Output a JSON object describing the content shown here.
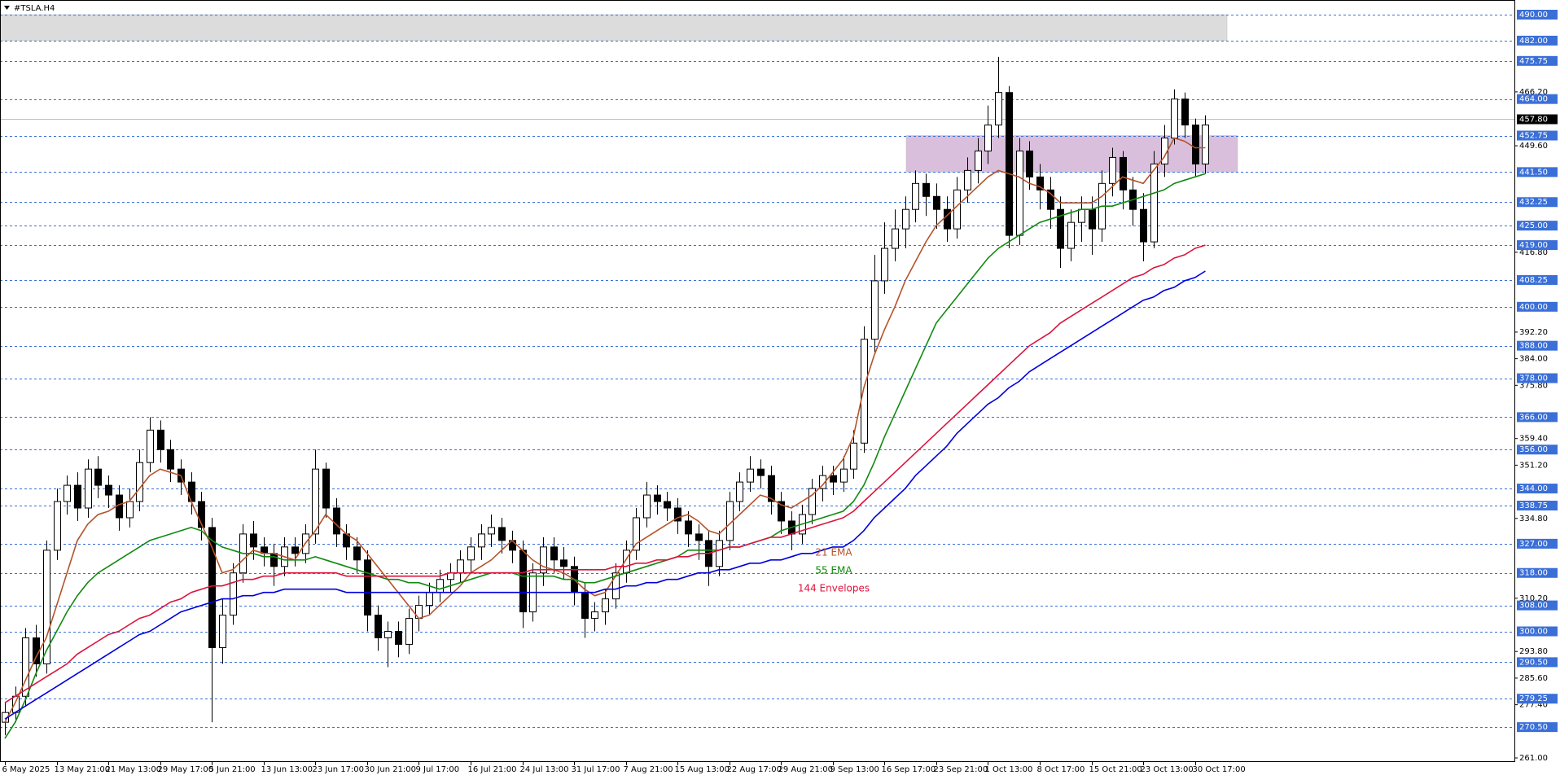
{
  "chart_data": {
    "type": "candlestick",
    "title": "#TSLA.H4",
    "categories": [
      "6 May 2025",
      null,
      null,
      null,
      null,
      "13 May 21:00",
      null,
      null,
      null,
      null,
      "21 May 13:00",
      null,
      null,
      null,
      null,
      "29 May 17:00",
      null,
      null,
      null,
      null,
      "5 Jun 21:00",
      null,
      null,
      null,
      null,
      "13 Jun 13:00",
      null,
      null,
      null,
      null,
      "23 Jun 17:00",
      null,
      null,
      null,
      null,
      "30 Jun 21:00",
      null,
      null,
      null,
      null,
      "9 Jul 17:00",
      null,
      null,
      null,
      null,
      "16 Jul 21:00",
      null,
      null,
      null,
      null,
      "24 Jul 13:00",
      null,
      null,
      null,
      null,
      "31 Jul 17:00",
      null,
      null,
      null,
      null,
      "7 Aug 21:00",
      null,
      null,
      null,
      null,
      "15 Aug 13:00",
      null,
      null,
      null,
      null,
      "22 Aug 17:00",
      null,
      null,
      null,
      null,
      "29 Aug 21:00",
      null,
      null,
      null,
      null,
      "9 Sep 13:00",
      null,
      null,
      null,
      null,
      "16 Sep 17:00",
      null,
      null,
      null,
      null,
      "23 Sep 21:00",
      null,
      null,
      null,
      null,
      "1 Oct 13:00",
      null,
      null,
      null,
      null,
      "8 Oct 17:00",
      null,
      null,
      null,
      null,
      "15 Oct 21:00",
      null,
      null,
      null,
      null,
      "23 Oct 13:00",
      null,
      null,
      null,
      null,
      "30 Oct 17:00",
      null
    ],
    "open": [
      272,
      275,
      280,
      298,
      290,
      325,
      340,
      345,
      338,
      350,
      345,
      342,
      335,
      340,
      352,
      362,
      356,
      350,
      346,
      340,
      332,
      295,
      305,
      318,
      330,
      326,
      324,
      320,
      326,
      324,
      330,
      350,
      338,
      330,
      326,
      322,
      305,
      298,
      300,
      296,
      304,
      308,
      312,
      316,
      318,
      322,
      326,
      330,
      332,
      328,
      325,
      306,
      318,
      326,
      322,
      320,
      312,
      304,
      306,
      310,
      318,
      325,
      335,
      342,
      340,
      338,
      334,
      330,
      328,
      320,
      328,
      340,
      346,
      350,
      348,
      340,
      334,
      330,
      336,
      344,
      348,
      346,
      350,
      358,
      390,
      408,
      418,
      424,
      430,
      438,
      434,
      430,
      424,
      436,
      442,
      448,
      456,
      466,
      422,
      448,
      440,
      436,
      430,
      418,
      426,
      430,
      424,
      438,
      446,
      436,
      430,
      420,
      444,
      452,
      464,
      456,
      444
    ],
    "high": [
      278,
      283,
      301,
      302,
      328,
      344,
      348,
      349,
      353,
      354,
      348,
      345,
      344,
      356,
      366,
      365,
      359,
      353,
      349,
      343,
      335,
      310,
      321,
      333,
      334,
      329,
      327,
      329,
      329,
      333,
      356,
      352,
      341,
      333,
      329,
      325,
      308,
      303,
      303,
      307,
      311,
      315,
      319,
      321,
      325,
      329,
      333,
      336,
      335,
      331,
      328,
      321,
      329,
      329,
      326,
      323,
      315,
      309,
      313,
      321,
      328,
      338,
      346,
      345,
      343,
      341,
      337,
      333,
      331,
      331,
      343,
      349,
      354,
      353,
      351,
      343,
      337,
      339,
      347,
      351,
      351,
      354,
      362,
      394,
      416,
      426,
      430,
      434,
      442,
      441,
      438,
      434,
      440,
      446,
      452,
      462,
      477,
      468,
      452,
      451,
      444,
      440,
      434,
      430,
      434,
      434,
      442,
      449,
      448,
      440,
      435,
      448,
      456,
      467,
      466,
      458,
      459
    ],
    "low": [
      268,
      272,
      277,
      286,
      287,
      322,
      336,
      334,
      335,
      341,
      338,
      331,
      332,
      337,
      349,
      352,
      346,
      342,
      336,
      328,
      272,
      290,
      302,
      315,
      322,
      320,
      314,
      317,
      320,
      321,
      327,
      335,
      326,
      322,
      318,
      300,
      294,
      289,
      292,
      293,
      300,
      305,
      309,
      312,
      315,
      318,
      322,
      326,
      324,
      321,
      301,
      303,
      314,
      318,
      316,
      308,
      298,
      300,
      302,
      307,
      315,
      322,
      332,
      336,
      334,
      330,
      326,
      322,
      314,
      317,
      325,
      337,
      343,
      344,
      336,
      330,
      325,
      327,
      333,
      340,
      342,
      343,
      347,
      355,
      386,
      404,
      414,
      418,
      426,
      428,
      424,
      420,
      421,
      432,
      438,
      444,
      452,
      418,
      419,
      436,
      430,
      424,
      412,
      414,
      420,
      416,
      420,
      434,
      430,
      425,
      414,
      418,
      440,
      450,
      452,
      440,
      441
    ],
    "close": [
      275,
      280,
      298,
      290,
      325,
      340,
      345,
      338,
      350,
      345,
      342,
      335,
      340,
      352,
      362,
      356,
      350,
      346,
      340,
      332,
      295,
      305,
      318,
      330,
      326,
      324,
      320,
      326,
      324,
      330,
      350,
      338,
      330,
      326,
      322,
      305,
      298,
      300,
      296,
      304,
      308,
      312,
      316,
      318,
      322,
      326,
      330,
      332,
      328,
      325,
      306,
      318,
      326,
      322,
      320,
      312,
      304,
      306,
      310,
      318,
      325,
      335,
      342,
      340,
      338,
      334,
      330,
      328,
      320,
      328,
      340,
      346,
      350,
      348,
      340,
      334,
      330,
      336,
      344,
      348,
      346,
      350,
      358,
      390,
      408,
      418,
      424,
      430,
      438,
      434,
      430,
      424,
      436,
      442,
      448,
      456,
      466,
      422,
      448,
      440,
      436,
      430,
      418,
      426,
      430,
      424,
      438,
      446,
      436,
      430,
      420,
      444,
      452,
      464,
      456,
      444,
      456
    ],
    "series": [
      {
        "name": "21 EMA",
        "color": "#b5532a",
        "values": [
          272,
          278,
          285,
          292,
          298,
          308,
          318,
          328,
          333,
          336,
          337,
          339,
          340,
          344,
          348,
          350,
          349,
          348,
          340,
          333,
          326,
          318,
          319,
          322,
          325,
          324,
          324,
          323,
          322,
          327,
          331,
          336,
          333,
          330,
          328,
          324,
          320,
          316,
          312,
          308,
          304,
          305,
          308,
          311,
          314,
          318,
          320,
          322,
          325,
          328,
          325,
          322,
          320,
          319,
          318,
          316,
          313,
          311,
          312,
          317,
          322,
          327,
          329,
          331,
          333,
          335,
          336,
          334,
          331,
          330,
          333,
          336,
          339,
          342,
          341,
          339,
          338,
          340,
          342,
          345,
          349,
          353,
          360,
          375,
          385,
          393,
          400,
          408,
          414,
          420,
          425,
          428,
          431,
          434,
          437,
          440,
          442,
          441,
          440,
          438,
          437,
          435,
          432,
          432,
          432,
          432,
          434,
          437,
          440,
          439,
          438,
          442,
          446,
          452,
          451,
          449,
          449
        ]
      },
      {
        "name": "55 EMA",
        "color": "#118a11",
        "values": [
          267,
          272,
          279,
          287,
          294,
          300,
          306,
          311,
          315,
          318,
          320,
          322,
          324,
          326,
          328,
          329,
          330,
          331,
          332,
          331,
          328,
          326,
          325,
          324,
          324,
          323,
          323,
          322,
          322,
          322,
          323,
          322,
          321,
          320,
          319,
          318,
          317,
          316,
          316,
          315,
          315,
          314,
          313,
          314,
          315,
          316,
          317,
          318,
          318,
          318,
          317,
          317,
          317,
          317,
          316,
          316,
          315,
          315,
          316,
          317,
          318,
          319,
          320,
          321,
          322,
          323,
          325,
          325,
          325,
          325,
          326,
          326,
          327,
          328,
          329,
          331,
          332,
          333,
          334,
          335,
          336,
          337,
          340,
          345,
          352,
          360,
          367,
          374,
          381,
          388,
          395,
          399,
          403,
          407,
          411,
          415,
          418,
          420,
          422,
          424,
          426,
          427,
          428,
          429,
          430,
          430,
          431,
          431,
          432,
          433,
          434,
          435,
          436,
          438,
          439,
          440,
          441
        ]
      },
      {
        "name": "144 Envelopes",
        "color": "#dc143c",
        "values": [
          278,
          280,
          282,
          284,
          286,
          288,
          290,
          293,
          295,
          297,
          299,
          300,
          302,
          304,
          305,
          307,
          309,
          310,
          312,
          313,
          314,
          314,
          315,
          316,
          316,
          317,
          317,
          318,
          318,
          318,
          318,
          318,
          318,
          317,
          317,
          317,
          317,
          317,
          317,
          317,
          317,
          317,
          317,
          318,
          318,
          318,
          318,
          318,
          318,
          318,
          318,
          319,
          319,
          319,
          319,
          319,
          319,
          319,
          319,
          320,
          320,
          321,
          321,
          322,
          322,
          323,
          323,
          324,
          324,
          325,
          326,
          326,
          327,
          328,
          329,
          329,
          330,
          331,
          332,
          333,
          334,
          335,
          337,
          340,
          343,
          346,
          349,
          352,
          355,
          358,
          361,
          364,
          367,
          370,
          373,
          376,
          379,
          382,
          385,
          388,
          390,
          392,
          395,
          397,
          399,
          401,
          403,
          405,
          407,
          409,
          410,
          412,
          413,
          415,
          416,
          418,
          419
        ]
      },
      {
        "color": "#0000e0",
        "values": [
          273,
          275,
          277,
          279,
          281,
          283,
          285,
          287,
          289,
          291,
          293,
          295,
          297,
          299,
          300,
          302,
          304,
          306,
          307,
          308,
          309,
          310,
          310,
          311,
          311,
          312,
          312,
          313,
          313,
          313,
          313,
          313,
          313,
          312,
          312,
          312,
          312,
          312,
          312,
          312,
          312,
          312,
          312,
          312,
          312,
          312,
          312,
          312,
          312,
          312,
          312,
          312,
          312,
          312,
          312,
          312,
          312,
          312,
          313,
          313,
          314,
          314,
          315,
          315,
          316,
          316,
          317,
          318,
          318,
          319,
          319,
          320,
          321,
          321,
          322,
          322,
          323,
          324,
          324,
          325,
          326,
          326,
          328,
          331,
          335,
          338,
          341,
          344,
          348,
          351,
          354,
          357,
          361,
          364,
          367,
          370,
          372,
          375,
          377,
          380,
          382,
          384,
          386,
          388,
          390,
          392,
          394,
          396,
          398,
          400,
          402,
          403,
          405,
          406,
          408,
          409,
          411
        ]
      }
    ],
    "ylim": [
      261,
      490
    ],
    "yticks": [
      {
        "value": 466.2,
        "label": "466.20"
      },
      {
        "value": 449.6,
        "label": "449.60"
      },
      {
        "value": 416.8,
        "label": "416.80"
      },
      {
        "value": 392.2,
        "label": "392.20"
      },
      {
        "value": 384,
        "label": "384.00"
      },
      {
        "value": 375.8,
        "label": "375.80"
      },
      {
        "value": 359.4,
        "label": "359.40"
      },
      {
        "value": 351.2,
        "label": "351.20"
      },
      {
        "value": 334.8,
        "label": "334.80"
      },
      {
        "value": 310.2,
        "label": "310.20"
      },
      {
        "value": 293.8,
        "label": "293.80"
      },
      {
        "value": 285.6,
        "label": "285.60"
      },
      {
        "value": 277.4,
        "label": "277.40"
      },
      {
        "value": 261,
        "label": "261.00"
      }
    ],
    "levels": [
      {
        "value": 490,
        "label": "490.00"
      },
      {
        "value": 482,
        "label": "482.00"
      },
      {
        "value": 475.75,
        "label": "475.75"
      },
      {
        "value": 464,
        "label": "464.00"
      },
      {
        "value": 452.75,
        "label": "452.75"
      },
      {
        "value": 441.5,
        "label": "441.50"
      },
      {
        "value": 432.25,
        "label": "432.25"
      },
      {
        "value": 425,
        "label": "425.00"
      },
      {
        "value": 419,
        "label": "419.00"
      },
      {
        "value": 408.25,
        "label": "408.25"
      },
      {
        "value": 400,
        "label": "400.00"
      },
      {
        "value": 388,
        "label": "388.00"
      },
      {
        "value": 378,
        "label": "378.00"
      },
      {
        "value": 366,
        "label": "366.00"
      },
      {
        "value": 356,
        "label": "356.00"
      },
      {
        "value": 344,
        "label": "344.00"
      },
      {
        "value": 338.75,
        "label": "338.75"
      },
      {
        "value": 327,
        "label": "327.00"
      },
      {
        "value": 318,
        "label": "318.00"
      },
      {
        "value": 308,
        "label": "308.00"
      },
      {
        "value": 300,
        "label": "300.00"
      },
      {
        "value": 290.5,
        "label": "290.50"
      },
      {
        "value": 279.25,
        "label": "279.25"
      },
      {
        "value": 270.5,
        "label": "270.50"
      }
    ],
    "level_color": "#3a6fd8",
    "current_price": {
      "value": 457.8,
      "label": "457.80"
    },
    "zones": [
      {
        "ylim": [
          482,
          490
        ],
        "color": "#dcdcdc"
      },
      {
        "ylim": [
          441.5,
          452.75
        ],
        "color": "#d9bfdc"
      }
    ]
  }
}
